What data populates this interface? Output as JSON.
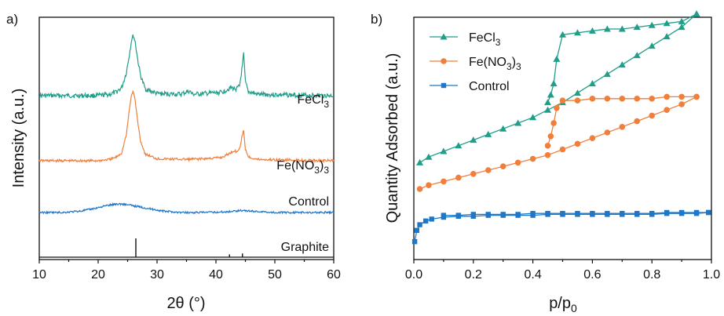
{
  "chart_data": [
    {
      "panel": "a)",
      "type": "line",
      "xlabel": "2θ (°)",
      "ylabel": "Intensity (a.u.)",
      "xlim": [
        10,
        60
      ],
      "xticks": [
        "10",
        "20",
        "30",
        "40",
        "50",
        "60"
      ],
      "yticks_shown": false,
      "series": [
        {
          "name": "FeCl3",
          "label_text": "FeCl",
          "label_sub": "3",
          "color": "#1f9e89",
          "x": [
            10,
            15,
            20,
            22,
            23,
            24,
            24.8,
            25.3,
            25.7,
            26.0,
            26.3,
            26.7,
            27.2,
            28,
            30,
            34,
            35.5,
            36,
            38,
            41,
            42.5,
            43,
            43.5,
            44,
            44.5,
            44.7,
            45,
            45.5,
            47,
            52,
            60
          ],
          "y": [
            0.0,
            0.0,
            0.0,
            0.02,
            0.05,
            0.12,
            0.35,
            0.62,
            0.85,
            0.9,
            0.8,
            0.55,
            0.3,
            0.1,
            0.03,
            0.02,
            0.07,
            0.02,
            0.03,
            0.05,
            0.12,
            0.11,
            0.1,
            0.14,
            0.45,
            0.62,
            0.2,
            0.06,
            0.02,
            0.01,
            0.0
          ]
        },
        {
          "name": "Fe(NO3)3",
          "label_text": "Fe(NO",
          "label_sub": "3",
          "label_tail": ")",
          "label_sub2": "3",
          "color": "#f07f3c",
          "x": [
            10,
            15,
            20,
            22,
            23,
            24,
            24.8,
            25.3,
            25.7,
            26.0,
            26.3,
            26.7,
            27.2,
            28,
            30,
            35,
            38,
            41,
            42.5,
            43,
            43.5,
            44,
            44.5,
            44.7,
            45,
            45.5,
            47,
            52,
            60
          ],
          "y": [
            0.0,
            0.0,
            0.0,
            0.02,
            0.05,
            0.12,
            0.4,
            0.78,
            1.02,
            1.05,
            0.9,
            0.6,
            0.3,
            0.1,
            0.03,
            0.02,
            0.03,
            0.05,
            0.12,
            0.15,
            0.14,
            0.18,
            0.4,
            0.45,
            0.18,
            0.06,
            0.02,
            0.01,
            0.0
          ]
        },
        {
          "name": "Control",
          "label_text": "Control",
          "color": "#1f77c8",
          "x": [
            10,
            14,
            17,
            19,
            21,
            23,
            24,
            25,
            27,
            29,
            31,
            34,
            38,
            42,
            44,
            46,
            50,
            55,
            60
          ],
          "y": [
            0.0,
            0.0,
            0.02,
            0.05,
            0.09,
            0.12,
            0.12,
            0.11,
            0.08,
            0.05,
            0.02,
            0.0,
            0.0,
            0.01,
            0.03,
            0.02,
            0.0,
            0.0,
            0.0
          ]
        },
        {
          "name": "Graphite",
          "label_text": "Graphite",
          "color": "#111111",
          "reference_lines": [
            {
              "x": 26.4,
              "height": 1.0
            },
            {
              "x": 42.3,
              "height": 0.15
            },
            {
              "x": 44.5,
              "height": 0.2
            }
          ]
        }
      ]
    },
    {
      "panel": "b)",
      "type": "line",
      "xlabel": "p/p",
      "xlabel_sub": "0",
      "ylabel": "Quantity Adsorbed (a.u.)",
      "xlim": [
        0.0,
        1.0
      ],
      "xticks": [
        "0.0",
        "0.2",
        "0.4",
        "0.6",
        "0.8",
        "1.0"
      ],
      "yticks_shown": false,
      "legend": "top-left",
      "series": [
        {
          "name": "FeCl3",
          "label_text": "FeCl",
          "label_sub": "3",
          "marker": "triangle",
          "color": "#1f9e89",
          "adsorption": {
            "x": [
              0.02,
              0.05,
              0.1,
              0.15,
              0.2,
              0.25,
              0.3,
              0.35,
              0.4,
              0.45,
              0.5,
              0.55,
              0.6,
              0.65,
              0.7,
              0.75,
              0.8,
              0.85,
              0.9,
              0.95
            ],
            "y": [
              0.44,
              0.47,
              0.5,
              0.53,
              0.56,
              0.59,
              0.62,
              0.65,
              0.68,
              0.72,
              0.76,
              0.81,
              0.86,
              0.91,
              0.96,
              1.01,
              1.06,
              1.11,
              1.16,
              1.23
            ]
          },
          "desorption": {
            "x": [
              0.95,
              0.9,
              0.85,
              0.8,
              0.75,
              0.7,
              0.65,
              0.6,
              0.55,
              0.5,
              0.48,
              0.47,
              0.46,
              0.45
            ],
            "y": [
              1.23,
              1.19,
              1.18,
              1.17,
              1.16,
              1.15,
              1.15,
              1.14,
              1.13,
              1.12,
              0.99,
              0.86,
              0.8,
              0.76
            ]
          }
        },
        {
          "name": "Fe(NO3)3",
          "label_text": "Fe(NO",
          "label_sub": "3",
          "label_tail": ")",
          "label_sub2": "3",
          "marker": "circle",
          "color": "#f07f3c",
          "adsorption": {
            "x": [
              0.02,
              0.05,
              0.1,
              0.15,
              0.2,
              0.25,
              0.3,
              0.35,
              0.4,
              0.45,
              0.5,
              0.55,
              0.6,
              0.65,
              0.7,
              0.75,
              0.8,
              0.85,
              0.9,
              0.95
            ],
            "y": [
              0.3,
              0.32,
              0.34,
              0.36,
              0.38,
              0.4,
              0.42,
              0.44,
              0.46,
              0.48,
              0.51,
              0.54,
              0.57,
              0.6,
              0.63,
              0.66,
              0.69,
              0.72,
              0.75,
              0.79
            ]
          },
          "desorption": {
            "x": [
              0.95,
              0.9,
              0.85,
              0.8,
              0.75,
              0.7,
              0.65,
              0.6,
              0.55,
              0.5,
              0.48,
              0.47,
              0.46,
              0.45
            ],
            "y": [
              0.79,
              0.79,
              0.79,
              0.78,
              0.78,
              0.78,
              0.78,
              0.78,
              0.77,
              0.77,
              0.73,
              0.65,
              0.58,
              0.53
            ]
          }
        },
        {
          "name": "Control",
          "label_text": "Control",
          "marker": "square",
          "color": "#1f77c8",
          "adsorption": {
            "x": [
              0.003,
              0.01,
              0.02,
              0.04,
              0.06,
              0.1,
              0.15,
              0.2,
              0.25,
              0.3,
              0.35,
              0.4,
              0.45,
              0.5,
              0.55,
              0.6,
              0.65,
              0.7,
              0.75,
              0.8,
              0.85,
              0.9,
              0.95,
              0.99
            ],
            "y": [
              0.02,
              0.08,
              0.11,
              0.13,
              0.14,
              0.15,
              0.155,
              0.155,
              0.16,
              0.16,
              0.16,
              0.16,
              0.165,
              0.165,
              0.165,
              0.165,
              0.165,
              0.165,
              0.165,
              0.165,
              0.17,
              0.17,
              0.17,
              0.175
            ]
          },
          "desorption": {
            "x": [
              0.99,
              0.95,
              0.9,
              0.85,
              0.8,
              0.75,
              0.7,
              0.65,
              0.6,
              0.55,
              0.5,
              0.45,
              0.4,
              0.35,
              0.3,
              0.25,
              0.2,
              0.15,
              0.1
            ],
            "y": [
              0.175,
              0.175,
              0.175,
              0.175,
              0.17,
              0.17,
              0.17,
              0.17,
              0.17,
              0.17,
              0.17,
              0.17,
              0.17,
              0.165,
              0.165,
              0.165,
              0.165,
              0.16,
              0.16
            ]
          }
        }
      ]
    }
  ]
}
